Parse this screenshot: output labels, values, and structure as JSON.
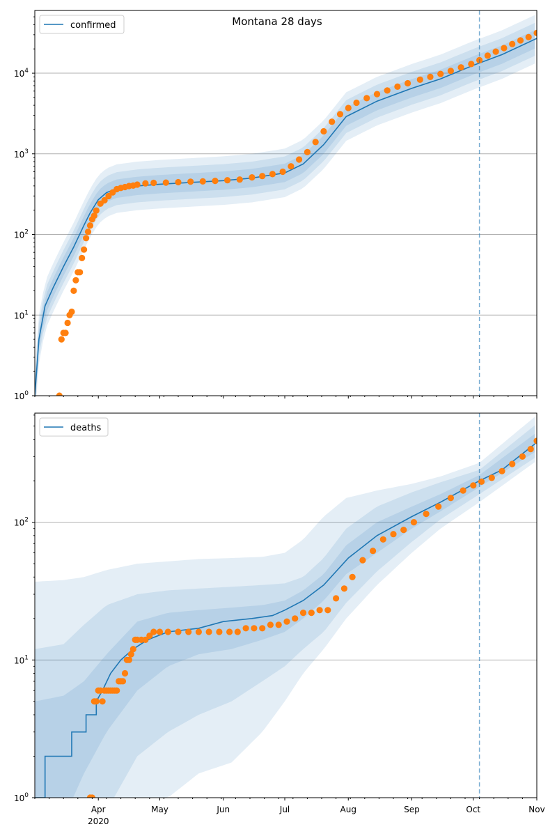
{
  "figure_title": "Montana 28 days",
  "colors": {
    "model": "#1f77b4",
    "observed": "#ff7f0e",
    "band": "#1f77b4",
    "grid": "#b0b0b0",
    "vline": "#1f77b4"
  },
  "x_axis": {
    "type": "date",
    "range": [
      "2020-03-01",
      "2020-11-01"
    ],
    "month_ticks": [
      {
        "date": "2020-04-01",
        "label": "Apr"
      },
      {
        "date": "2020-05-01",
        "label": "May"
      },
      {
        "date": "2020-06-01",
        "label": "Jun"
      },
      {
        "date": "2020-07-01",
        "label": "Jul"
      },
      {
        "date": "2020-08-01",
        "label": "Aug"
      },
      {
        "date": "2020-09-01",
        "label": "Sep"
      },
      {
        "date": "2020-10-01",
        "label": "Oct"
      },
      {
        "date": "2020-11-01",
        "label": "Nov"
      }
    ],
    "year_label": "2020",
    "forecast_start": "2020-10-04"
  },
  "chart_data": [
    {
      "type": "line",
      "legend": "confirmed",
      "yscale": "log",
      "ylim": [
        1,
        60000
      ],
      "yticks": [
        {
          "value": 1,
          "base": "10",
          "exp": "0"
        },
        {
          "value": 10,
          "base": "10",
          "exp": "1"
        },
        {
          "value": 100,
          "base": "10",
          "exp": "2"
        },
        {
          "value": 1000,
          "base": "10",
          "exp": "3"
        },
        {
          "value": 10000,
          "base": "10",
          "exp": "4"
        }
      ],
      "grid": "horizontal",
      "legend_position": "top-left",
      "model": {
        "dates": [
          "2020-03-01",
          "2020-03-03",
          "2020-03-06",
          "2020-03-10",
          "2020-03-15",
          "2020-03-20",
          "2020-03-25",
          "2020-03-28",
          "2020-04-01",
          "2020-04-05",
          "2020-04-10",
          "2020-04-20",
          "2020-05-01",
          "2020-05-15",
          "2020-06-01",
          "2020-06-15",
          "2020-07-01",
          "2020-07-10",
          "2020-07-20",
          "2020-07-31",
          "2020-08-15",
          "2020-09-01",
          "2020-09-15",
          "2020-10-01",
          "2020-10-15",
          "2020-11-01"
        ],
        "values": [
          1,
          5,
          13,
          22,
          40,
          70,
          130,
          185,
          270,
          330,
          370,
          400,
          420,
          440,
          465,
          500,
          580,
          750,
          1300,
          2900,
          4500,
          6500,
          8500,
          12500,
          17000,
          27000
        ]
      },
      "bands": [
        {
          "factor": 2.0
        },
        {
          "factor": 1.6
        },
        {
          "factor": 1.3
        }
      ],
      "observed": {
        "dates": [
          "2020-03-13",
          "2020-03-14",
          "2020-03-15",
          "2020-03-16",
          "2020-03-17",
          "2020-03-18",
          "2020-03-19",
          "2020-03-20",
          "2020-03-21",
          "2020-03-22",
          "2020-03-23",
          "2020-03-24",
          "2020-03-25",
          "2020-03-26",
          "2020-03-27",
          "2020-03-28",
          "2020-03-29",
          "2020-03-30",
          "2020-03-31",
          "2020-04-02",
          "2020-04-04",
          "2020-04-06",
          "2020-04-08",
          "2020-04-10",
          "2020-04-12",
          "2020-04-14",
          "2020-04-16",
          "2020-04-18",
          "2020-04-20",
          "2020-04-24",
          "2020-04-28",
          "2020-05-04",
          "2020-05-10",
          "2020-05-16",
          "2020-05-22",
          "2020-05-28",
          "2020-06-03",
          "2020-06-09",
          "2020-06-15",
          "2020-06-20",
          "2020-06-25",
          "2020-06-30",
          "2020-07-04",
          "2020-07-08",
          "2020-07-12",
          "2020-07-16",
          "2020-07-20",
          "2020-07-24",
          "2020-07-28",
          "2020-08-01",
          "2020-08-05",
          "2020-08-10",
          "2020-08-15",
          "2020-08-20",
          "2020-08-25",
          "2020-08-30",
          "2020-09-05",
          "2020-09-10",
          "2020-09-15",
          "2020-09-20",
          "2020-09-25",
          "2020-09-30",
          "2020-10-04",
          "2020-10-08",
          "2020-10-12",
          "2020-10-16",
          "2020-10-20",
          "2020-10-24",
          "2020-10-28",
          "2020-11-01"
        ],
        "values": [
          1,
          5,
          6,
          6,
          8,
          10,
          11,
          20,
          27,
          34,
          34,
          51,
          65,
          90,
          108,
          129,
          154,
          171,
          198,
          241,
          265,
          299,
          332,
          365,
          377,
          387,
          399,
          404,
          415,
          430,
          436,
          440,
          445,
          451,
          455,
          462,
          470,
          480,
          510,
          530,
          560,
          600,
          700,
          850,
          1050,
          1400,
          1900,
          2500,
          3100,
          3700,
          4300,
          4900,
          5500,
          6100,
          6800,
          7500,
          8300,
          9000,
          9800,
          10700,
          11800,
          13000,
          14500,
          16500,
          18500,
          20500,
          23000,
          25500,
          28000,
          31500
        ]
      }
    },
    {
      "type": "line",
      "legend": "deaths",
      "yscale": "log",
      "ylim": [
        1,
        620
      ],
      "yticks": [
        {
          "value": 1,
          "base": "10",
          "exp": "0"
        },
        {
          "value": 10,
          "base": "10",
          "exp": "1"
        },
        {
          "value": 100,
          "base": "10",
          "exp": "2"
        }
      ],
      "grid": "horizontal",
      "legend_position": "top-left",
      "model": {
        "dates": [
          "2020-03-01",
          "2020-03-06",
          "2020-03-06",
          "2020-03-19",
          "2020-03-19",
          "2020-03-26",
          "2020-03-26",
          "2020-03-31",
          "2020-03-31",
          "2020-04-03",
          "2020-04-07",
          "2020-04-12",
          "2020-04-18",
          "2020-04-25",
          "2020-05-05",
          "2020-05-20",
          "2020-06-01",
          "2020-06-15",
          "2020-06-25",
          "2020-07-01",
          "2020-07-10",
          "2020-07-20",
          "2020-08-01",
          "2020-08-15",
          "2020-09-01",
          "2020-09-15",
          "2020-10-04",
          "2020-10-15",
          "2020-11-01"
        ],
        "values": [
          1,
          1,
          2,
          2,
          3,
          3,
          4,
          4,
          5,
          6,
          8,
          10,
          12,
          14,
          16,
          17,
          19,
          20,
          21,
          23,
          27,
          35,
          55,
          80,
          110,
          140,
          200,
          240,
          380
        ]
      },
      "bands": [
        {
          "lower": [
            0.5,
            0.5,
            0.5,
            0.5,
            1,
            1,
            1.5,
            1.8,
            3,
            5,
            8,
            12,
            20,
            35,
            60,
            90,
            140,
            280
          ],
          "upper": [
            37,
            38,
            40,
            45,
            50,
            52,
            54,
            55,
            56,
            60,
            75,
            110,
            150,
            170,
            190,
            215,
            270,
            600
          ],
          "dates": [
            "2020-03-01",
            "2020-03-15",
            "2020-03-25",
            "2020-04-05",
            "2020-04-20",
            "2020-05-05",
            "2020-05-20",
            "2020-06-05",
            "2020-06-20",
            "2020-07-01",
            "2020-07-10",
            "2020-07-20",
            "2020-07-31",
            "2020-08-15",
            "2020-09-01",
            "2020-09-15",
            "2020-10-04",
            "2020-11-01"
          ]
        },
        {
          "lower": [
            0.5,
            0.5,
            0.6,
            0.8,
            2,
            3,
            4,
            5,
            7,
            9,
            12,
            16,
            26,
            44,
            72,
            105,
            160,
            300
          ],
          "upper": [
            12,
            13,
            18,
            25,
            30,
            32,
            33,
            34,
            35,
            36,
            40,
            55,
            90,
            130,
            165,
            195,
            240,
            520
          ],
          "dates": [
            "2020-03-01",
            "2020-03-15",
            "2020-03-25",
            "2020-04-05",
            "2020-04-20",
            "2020-05-05",
            "2020-05-20",
            "2020-06-05",
            "2020-06-20",
            "2020-07-01",
            "2020-07-10",
            "2020-07-20",
            "2020-07-31",
            "2020-08-15",
            "2020-09-01",
            "2020-09-15",
            "2020-10-04",
            "2020-11-01"
          ]
        },
        {
          "lower": [
            0.6,
            0.7,
            1.5,
            3,
            6,
            9,
            11,
            12,
            14,
            16,
            20,
            27,
            42,
            60,
            90,
            120,
            180,
            330
          ],
          "upper": [
            5,
            5.5,
            7,
            11,
            19,
            22,
            23,
            24,
            25,
            27,
            32,
            42,
            68,
            100,
            130,
            160,
            220,
            450
          ],
          "dates": [
            "2020-03-01",
            "2020-03-15",
            "2020-03-25",
            "2020-04-05",
            "2020-04-20",
            "2020-05-05",
            "2020-05-20",
            "2020-06-05",
            "2020-06-20",
            "2020-07-01",
            "2020-07-10",
            "2020-07-20",
            "2020-07-31",
            "2020-08-15",
            "2020-09-01",
            "2020-09-15",
            "2020-10-04",
            "2020-11-01"
          ]
        }
      ],
      "observed": {
        "dates": [
          "2020-03-28",
          "2020-03-29",
          "2020-03-30",
          "2020-03-31",
          "2020-04-01",
          "2020-04-02",
          "2020-04-03",
          "2020-04-04",
          "2020-04-05",
          "2020-04-06",
          "2020-04-07",
          "2020-04-08",
          "2020-04-09",
          "2020-04-10",
          "2020-04-11",
          "2020-04-12",
          "2020-04-13",
          "2020-04-14",
          "2020-04-15",
          "2020-04-16",
          "2020-04-17",
          "2020-04-18",
          "2020-04-19",
          "2020-04-20",
          "2020-04-22",
          "2020-04-24",
          "2020-04-26",
          "2020-04-28",
          "2020-05-01",
          "2020-05-05",
          "2020-05-10",
          "2020-05-15",
          "2020-05-20",
          "2020-05-25",
          "2020-05-30",
          "2020-06-04",
          "2020-06-08",
          "2020-06-12",
          "2020-06-16",
          "2020-06-20",
          "2020-06-24",
          "2020-06-28",
          "2020-07-02",
          "2020-07-06",
          "2020-07-10",
          "2020-07-14",
          "2020-07-18",
          "2020-07-22",
          "2020-07-26",
          "2020-07-30",
          "2020-08-03",
          "2020-08-08",
          "2020-08-13",
          "2020-08-18",
          "2020-08-23",
          "2020-08-28",
          "2020-09-02",
          "2020-09-08",
          "2020-09-14",
          "2020-09-20",
          "2020-09-26",
          "2020-10-01",
          "2020-10-05",
          "2020-10-10",
          "2020-10-15",
          "2020-10-20",
          "2020-10-25",
          "2020-10-29",
          "2020-11-01"
        ],
        "values": [
          1,
          1,
          5,
          5,
          6,
          6,
          5,
          6,
          6,
          6,
          6,
          6,
          6,
          6,
          7,
          7,
          7,
          8,
          10,
          10,
          11,
          12,
          14,
          14,
          14,
          14,
          15,
          16,
          16,
          16,
          16,
          16,
          16,
          16,
          16,
          16,
          16,
          17,
          17,
          17,
          18,
          18,
          19,
          20,
          22,
          22,
          23,
          23,
          28,
          33,
          40,
          53,
          62,
          75,
          82,
          88,
          100,
          115,
          130,
          150,
          170,
          185,
          197,
          210,
          235,
          265,
          300,
          340,
          390
        ]
      }
    }
  ]
}
